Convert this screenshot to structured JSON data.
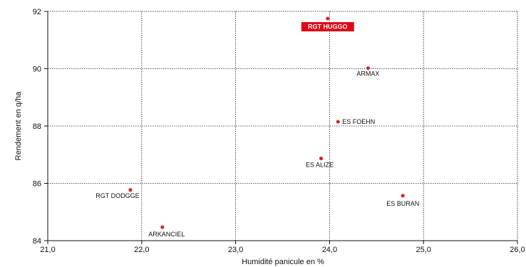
{
  "chart_data": {
    "type": "scatter",
    "title": "",
    "xlabel": "Humidité panicule en %",
    "ylabel": "Rendement en q/ha",
    "xlim": [
      21.0,
      26.0
    ],
    "ylim": [
      84,
      92
    ],
    "x_ticks": [
      21.0,
      22.0,
      23.0,
      24.0,
      25.0,
      26.0
    ],
    "x_tick_labels": [
      "21,0",
      "22,0",
      "23,0",
      "24,0",
      "25,0",
      "26,0"
    ],
    "y_ticks": [
      84,
      86,
      88,
      90,
      92
    ],
    "y_tick_labels": [
      "84",
      "86",
      "88",
      "90",
      "92"
    ],
    "grid": true,
    "grid_style": "dotted",
    "marker_color": "#d9262c",
    "highlight_color": "#e30613",
    "points": [
      {
        "label": "RGT HUGGO",
        "x": 23.98,
        "y": 91.75,
        "highlight": true
      },
      {
        "label": "ARMAX",
        "x": 24.41,
        "y": 90.02
      },
      {
        "label": "ES FOEHN",
        "x": 24.09,
        "y": 88.15
      },
      {
        "label": "ES ALIZE",
        "x": 23.91,
        "y": 86.87
      },
      {
        "label": "RGT DODGGE",
        "x": 21.88,
        "y": 85.77
      },
      {
        "label": "ES BURAN",
        "x": 24.78,
        "y": 85.57
      },
      {
        "label": "ARKANCIEL",
        "x": 22.22,
        "y": 84.47
      }
    ]
  }
}
